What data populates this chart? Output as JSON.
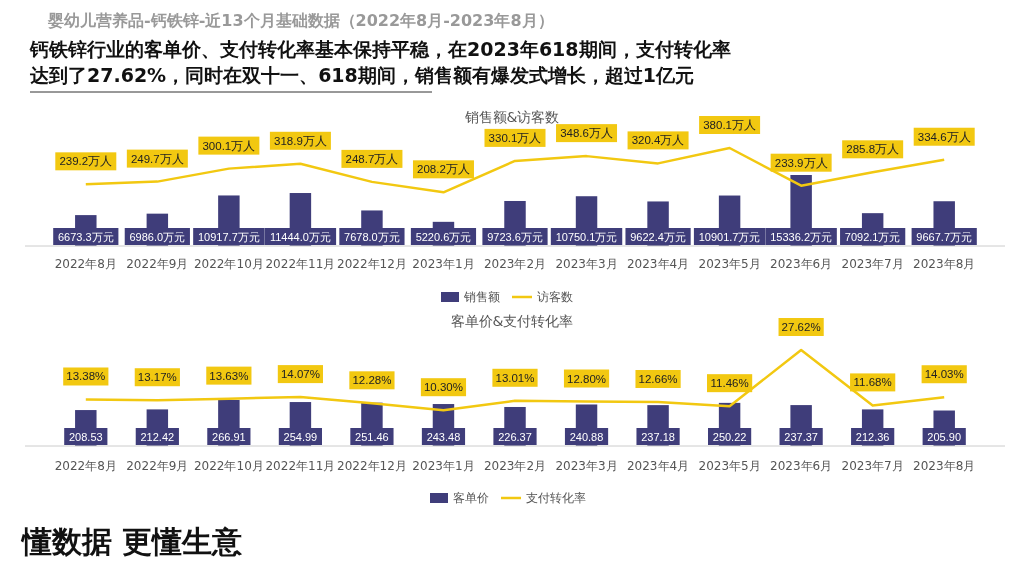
{
  "chart_data": [
    {
      "type": "bar",
      "title": "销售额&访客数",
      "categories": [
        "2022年8月",
        "2022年9月",
        "2022年10月",
        "2022年11月",
        "2022年12月",
        "2023年1月",
        "2023年2月",
        "2023年3月",
        "2023年4月",
        "2023年5月",
        "2023年6月",
        "2023年7月",
        "2023年8月"
      ],
      "series": [
        {
          "name": "销售额",
          "color": "#3f3d7a",
          "values": [
            6673.3,
            6986.0,
            10917.7,
            11444.0,
            7678.0,
            5220.6,
            9723.6,
            10750.1,
            9622.4,
            10901.7,
            15336.2,
            7092.1,
            9667.7
          ],
          "value_labels": [
            "6673.3万元",
            "6986.0万元",
            "10917.7万元",
            "11444.0万元",
            "7678.0万元",
            "5220.6万元",
            "9723.6万元",
            "10750.1万元",
            "9622.4万元",
            "10901.7万元",
            "15336.2万元",
            "7092.1万元",
            "9667.7万元"
          ]
        },
        {
          "name": "访客数",
          "type": "line",
          "axis": "y2",
          "color": "#f2c811",
          "values": [
            239.2,
            249.7,
            300.1,
            318.9,
            248.7,
            208.2,
            330.1,
            348.6,
            320.4,
            380.1,
            233.9,
            285.8,
            334.6
          ],
          "value_labels": [
            "239.2万人",
            "249.7万人",
            "300.1万人",
            "318.9万人",
            "248.7万人",
            "208.2万人",
            "330.1万人",
            "348.6万人",
            "320.4万人",
            "380.1万人",
            "233.9万人",
            "285.8万人",
            "334.6万人"
          ]
        }
      ],
      "legend": "bottom",
      "annotations": [
        "婴幼儿营养品-钙铁锌-近13个月基础数据（2022年8月-2023年8月）",
        "钙铁锌行业的客单价、支付转化率基本保持平稳，在2023年618期间，支付转化率",
        "达到了27.62%，同时在双十一、618期间，销售额有爆发式增长，超过1亿元"
      ]
    },
    {
      "type": "bar",
      "title": "客单价&支付转化率",
      "categories": [
        "2022年8月",
        "2022年9月",
        "2022年10月",
        "2022年11月",
        "2022年12月",
        "2023年1月",
        "2023年2月",
        "2023年3月",
        "2023年4月",
        "2023年5月",
        "2023年6月",
        "2023年7月",
        "2023年8月"
      ],
      "series": [
        {
          "name": "客单价",
          "color": "#3f3d7a",
          "values": [
            208.53,
            212.42,
            266.91,
            254.99,
            251.46,
            243.48,
            226.37,
            240.88,
            237.18,
            250.22,
            237.37,
            212.36,
            205.9
          ],
          "value_labels": [
            "208.53",
            "212.42",
            "266.91",
            "254.99",
            "251.46",
            "243.48",
            "226.37",
            "240.88",
            "237.18",
            "250.22",
            "237.37",
            "212.36",
            "205.90"
          ]
        },
        {
          "name": "支付转化率",
          "type": "line",
          "axis": "y2",
          "color": "#f2c811",
          "values": [
            13.38,
            13.17,
            13.63,
            14.07,
            12.28,
            10.3,
            13.01,
            12.8,
            12.66,
            11.46,
            27.62,
            11.68,
            14.03
          ],
          "value_labels": [
            "13.38%",
            "13.17%",
            "13.63%",
            "14.07%",
            "12.28%",
            "10.30%",
            "13.01%",
            "12.80%",
            "12.66%",
            "11.46%",
            "27.62%",
            "11.68%",
            "14.03%"
          ]
        }
      ],
      "legend": "bottom",
      "annotations": [
        "懂数据 更懂生意"
      ]
    }
  ]
}
